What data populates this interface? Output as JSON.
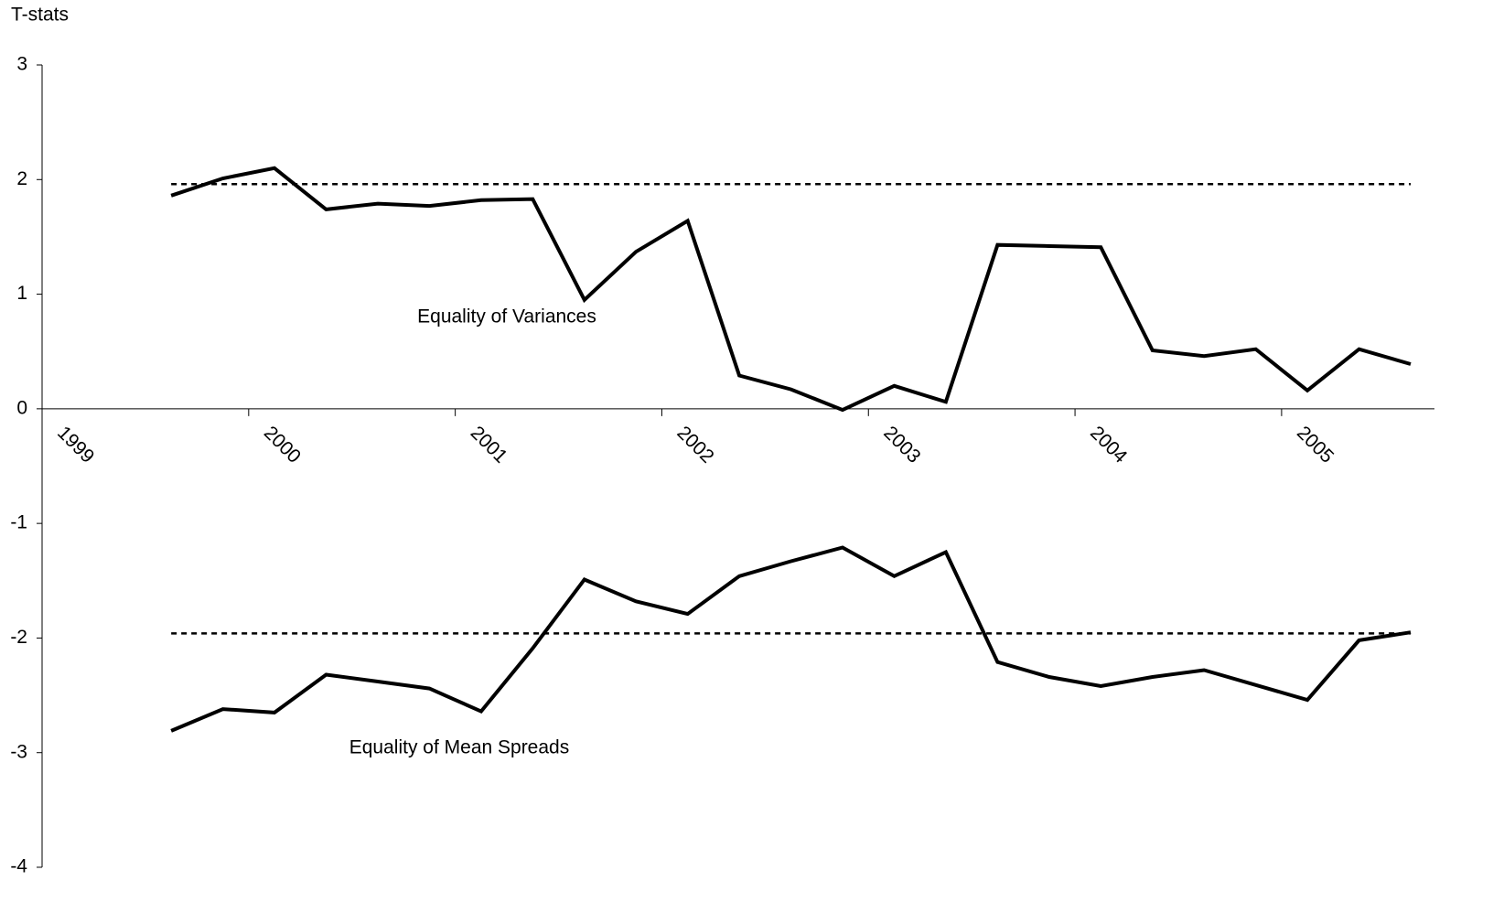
{
  "chart_data": {
    "type": "line",
    "y_label": "T-stats",
    "x": [
      1999.625,
      1999.875,
      2000.125,
      2000.375,
      2000.625,
      2000.875,
      2001.125,
      2001.375,
      2001.625,
      2001.875,
      2002.125,
      2002.375,
      2002.625,
      2002.875,
      2003.125,
      2003.375,
      2003.625,
      2003.875,
      2004.125,
      2004.375,
      2004.625,
      2004.875,
      2005.125,
      2005.375,
      2005.625
    ],
    "series": [
      {
        "name": "Equality of Variances",
        "color": "#000000",
        "values": [
          1.86,
          2.01,
          2.1,
          1.74,
          1.79,
          1.77,
          1.82,
          1.83,
          0.95,
          1.37,
          1.64,
          0.29,
          0.17,
          -0.01,
          0.2,
          0.06,
          1.43,
          1.42,
          1.41,
          0.51,
          0.46,
          0.52,
          0.16,
          0.52,
          0.39
        ]
      },
      {
        "name": "Equality of Mean Spreads",
        "color": "#000000",
        "values": [
          -2.81,
          -2.62,
          -2.65,
          -2.32,
          -2.38,
          -2.44,
          -2.64,
          -2.09,
          -1.49,
          -1.68,
          -1.79,
          -1.46,
          -1.33,
          -1.21,
          -1.46,
          -1.25,
          -2.21,
          -2.34,
          -2.42,
          -2.34,
          -2.28,
          -2.41,
          -2.54,
          -2.02,
          -1.95
        ]
      }
    ],
    "reference_lines": [
      {
        "value": 1.96,
        "style": "dashed"
      },
      {
        "value": -1.96,
        "style": "dashed"
      }
    ],
    "xlim": [
      1999,
      2005.74
    ],
    "xticks": [
      1999,
      2000,
      2001,
      2002,
      2003,
      2004,
      2005
    ],
    "ylim": [
      -4,
      3
    ],
    "yticks": [
      -4,
      -3,
      -2,
      -1,
      0,
      1,
      2,
      3
    ],
    "grid": false
  }
}
